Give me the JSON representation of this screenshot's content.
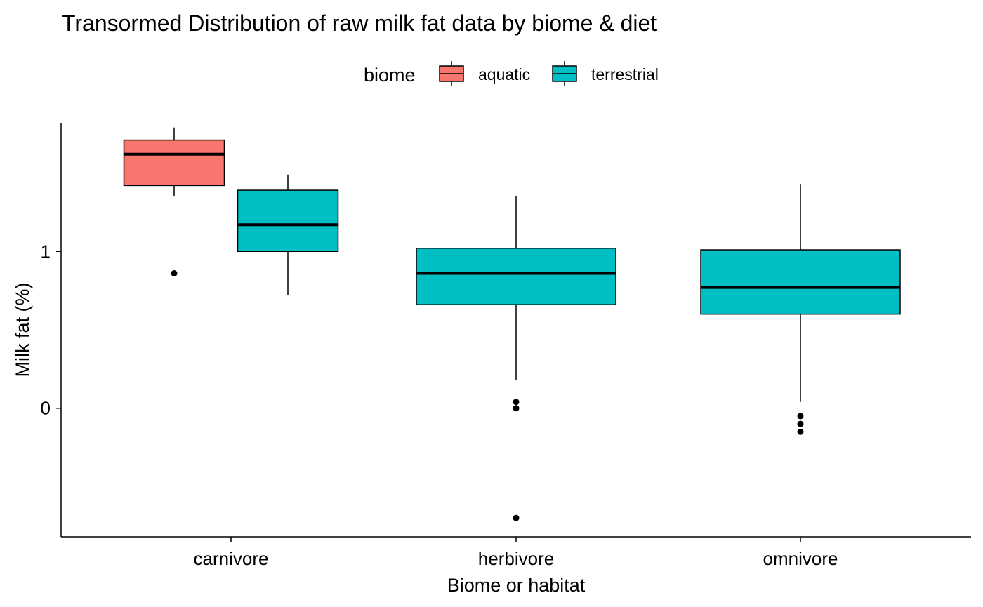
{
  "chart_data": {
    "type": "boxplot",
    "title": "Transormed Distribution of raw milk fat data by biome & diet",
    "xlabel": "Biome or habitat",
    "ylabel": "Milk fat (%)",
    "categories": [
      "carnivore",
      "herbivore",
      "omnivore"
    ],
    "ylim": [
      -0.82,
      1.82
    ],
    "yticks": [
      0,
      1
    ],
    "grid": false,
    "legend": {
      "title": "biome",
      "position": "top",
      "entries": [
        {
          "label": "aquatic",
          "color": "#F8766D"
        },
        {
          "label": "terrestrial",
          "color": "#00BFC4"
        }
      ]
    },
    "series": [
      {
        "name": "aquatic",
        "color": "#F8766D",
        "boxes": [
          {
            "category": "carnivore",
            "whisker_low": 1.35,
            "q1": 1.42,
            "median": 1.62,
            "q3": 1.71,
            "whisker_high": 1.79,
            "outliers": [
              0.86
            ]
          }
        ]
      },
      {
        "name": "terrestrial",
        "color": "#00BFC4",
        "boxes": [
          {
            "category": "carnivore",
            "whisker_low": 0.72,
            "q1": 1.0,
            "median": 1.17,
            "q3": 1.39,
            "whisker_high": 1.49,
            "outliers": []
          },
          {
            "category": "herbivore",
            "whisker_low": 0.18,
            "q1": 0.66,
            "median": 0.86,
            "q3": 1.02,
            "whisker_high": 1.35,
            "outliers": [
              0.04,
              0.0,
              -0.7
            ]
          },
          {
            "category": "omnivore",
            "whisker_low": 0.04,
            "q1": 0.6,
            "median": 0.77,
            "q3": 1.01,
            "whisker_high": 1.43,
            "outliers": [
              -0.05,
              -0.1,
              -0.15
            ]
          }
        ]
      }
    ]
  }
}
